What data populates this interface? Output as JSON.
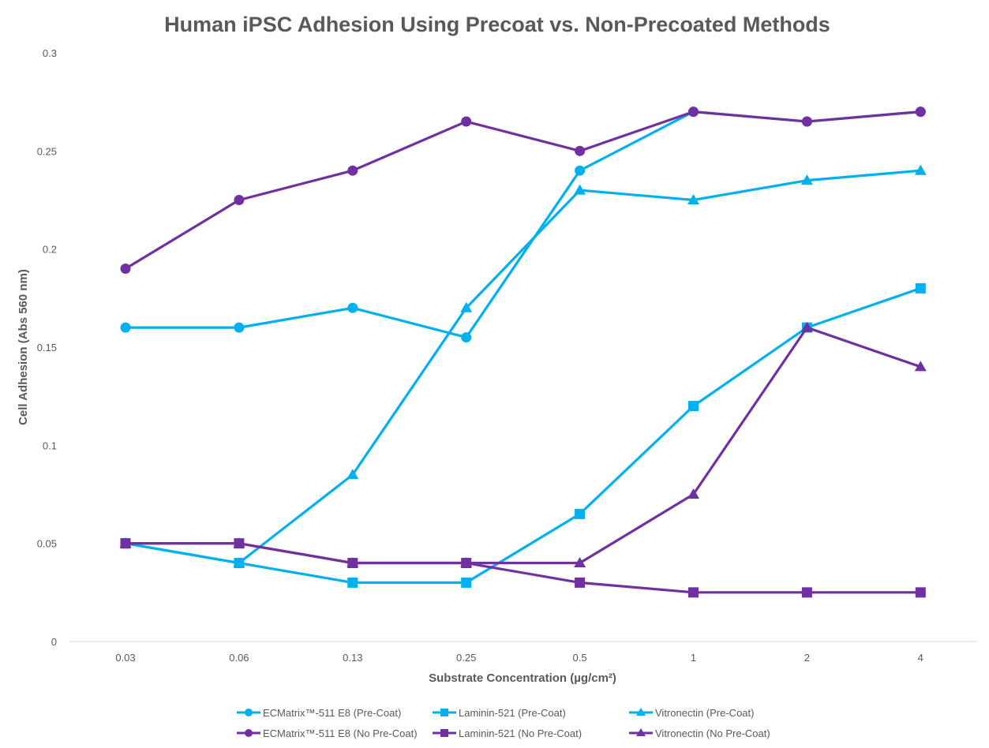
{
  "chart_data": {
    "type": "line",
    "title": "Human iPSC Adhesion Using Precoat vs. Non-Precoated Methods",
    "xlabel": "Substrate Concentration (µg/cm²)",
    "ylabel": "Cell Adhesion (Abs 560 nm)",
    "categories": [
      "0.03",
      "0.06",
      "0.13",
      "0.25",
      "0.5",
      "1",
      "2",
      "4"
    ],
    "ylim": [
      0,
      0.3
    ],
    "yticks": [
      "0",
      "0.05",
      "0.1",
      "0.15",
      "0.2",
      "0.25",
      "0.3"
    ],
    "grid": false,
    "legend_position": "bottom",
    "series": [
      {
        "name": "ECMatrix™-511 E8 (Pre-Coat)",
        "color": "#00B0F0",
        "marker": "circle",
        "values": [
          0.16,
          0.16,
          0.17,
          0.155,
          0.24,
          0.27,
          0.265,
          0.27
        ]
      },
      {
        "name": "Laminin-521 (Pre-Coat)",
        "color": "#00B0F0",
        "marker": "square",
        "values": [
          0.05,
          0.04,
          0.03,
          0.03,
          0.065,
          0.12,
          0.16,
          0.18
        ]
      },
      {
        "name": "Vitronectin (Pre-Coat)",
        "color": "#00B0F0",
        "marker": "triangle",
        "values": [
          0.05,
          0.04,
          0.085,
          0.17,
          0.23,
          0.225,
          0.235,
          0.24
        ]
      },
      {
        "name": "ECMatrix™-511 E8 (No Pre-Coat)",
        "color": "#7030A0",
        "marker": "circle",
        "values": [
          0.19,
          0.225,
          0.24,
          0.265,
          0.25,
          0.27,
          0.265,
          0.27
        ]
      },
      {
        "name": "Laminin-521 (No Pre-Coat)",
        "color": "#7030A0",
        "marker": "square",
        "values": [
          0.05,
          0.05,
          0.04,
          0.04,
          0.03,
          0.025,
          0.025,
          0.025
        ]
      },
      {
        "name": "Vitronectin (No Pre-Coat)",
        "color": "#7030A0",
        "marker": "triangle",
        "values": [
          0.05,
          0.05,
          0.04,
          0.04,
          0.04,
          0.075,
          0.16,
          0.14
        ]
      }
    ]
  }
}
